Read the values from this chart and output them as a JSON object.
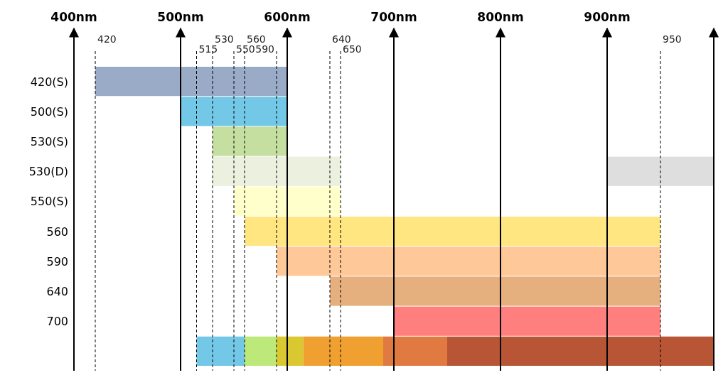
{
  "chart_data": {
    "type": "bar",
    "orientation": "horizontal",
    "categories": [
      "420(S)",
      "500(S)",
      "530(S)",
      "530(D)",
      "550(S)",
      "560",
      "590",
      "640",
      "700",
      null
    ],
    "series": [
      {
        "values": [
          180,
          100,
          70,
          120,
          100,
          390,
          360,
          310,
          250,
          45
        ],
        "base": [
          420,
          500,
          530,
          530,
          550,
          560,
          590,
          640,
          700,
          515
        ],
        "colors": [
          "#9aabc7",
          "#72c8e6",
          "#c4dfa0",
          "#ebf1de",
          "#ffffcc",
          "#ffe680",
          "#ffc898",
          "#e6b07e",
          "#ff7f7f",
          "#72c8e6"
        ]
      },
      {
        "values": [
          null,
          null,
          null,
          100,
          null,
          null,
          null,
          null,
          null,
          null
        ],
        "base": [
          null,
          null,
          null,
          900,
          null,
          null,
          null,
          null,
          null,
          null
        ],
        "color": "#dedede"
      },
      {
        "values": [
          null,
          null,
          null,
          null,
          null,
          null,
          null,
          null,
          null,
          30
        ],
        "base": [
          null,
          null,
          null,
          null,
          null,
          null,
          null,
          null,
          null,
          560
        ],
        "color": "#bde87a"
      },
      {
        "values": [
          null,
          null,
          null,
          null,
          null,
          null,
          null,
          null,
          null,
          25
        ],
        "base": [
          null,
          null,
          null,
          null,
          null,
          null,
          null,
          null,
          null,
          590
        ],
        "color": "#d9c830"
      },
      {
        "values": [
          null,
          null,
          null,
          null,
          null,
          null,
          null,
          null,
          null,
          75
        ],
        "base": [
          null,
          null,
          null,
          null,
          null,
          null,
          null,
          null,
          null,
          615
        ],
        "color": "#f0a030"
      },
      {
        "values": [
          null,
          null,
          null,
          null,
          null,
          null,
          null,
          null,
          null,
          60
        ],
        "base": [
          null,
          null,
          null,
          null,
          null,
          null,
          null,
          null,
          null,
          690
        ],
        "color": "#e07a40"
      },
      {
        "values": [
          null,
          null,
          null,
          null,
          null,
          null,
          null,
          null,
          null,
          250
        ],
        "base": [
          null,
          null,
          null,
          null,
          null,
          null,
          null,
          null,
          null,
          750
        ],
        "color": "#b85535"
      }
    ],
    "xlim": [
      400,
      1000
    ],
    "xticks": [
      {
        "value": 400,
        "label": "400nm"
      },
      {
        "value": 500,
        "label": "500nm"
      },
      {
        "value": 600,
        "label": "600nm"
      },
      {
        "value": 700,
        "label": "700nm"
      },
      {
        "value": 800,
        "label": "800nm"
      },
      {
        "value": 900,
        "label": "900nm"
      },
      {
        "value": 1000,
        "label": null
      }
    ],
    "grid": "x",
    "ref_lines": [
      {
        "axis": "x",
        "value": 420,
        "label": "420",
        "line_style": "dashed"
      },
      {
        "axis": "x",
        "value": 515,
        "label": "515",
        "line_style": "dashed"
      },
      {
        "axis": "x",
        "value": 530,
        "label": "530",
        "line_style": "dashed"
      },
      {
        "axis": "x",
        "value": 550,
        "label": "550",
        "line_style": "dashed"
      },
      {
        "axis": "x",
        "value": 560,
        "label": "560",
        "line_style": "dashed"
      },
      {
        "axis": "x",
        "value": 590,
        "label": "590",
        "line_style": "dashed"
      },
      {
        "axis": "x",
        "value": 640,
        "label": "640",
        "line_style": "dashed"
      },
      {
        "axis": "x",
        "value": 650,
        "label": "650",
        "line_style": "dashed"
      },
      {
        "axis": "x",
        "value": 950,
        "label": "950",
        "line_style": "dashed"
      }
    ]
  }
}
